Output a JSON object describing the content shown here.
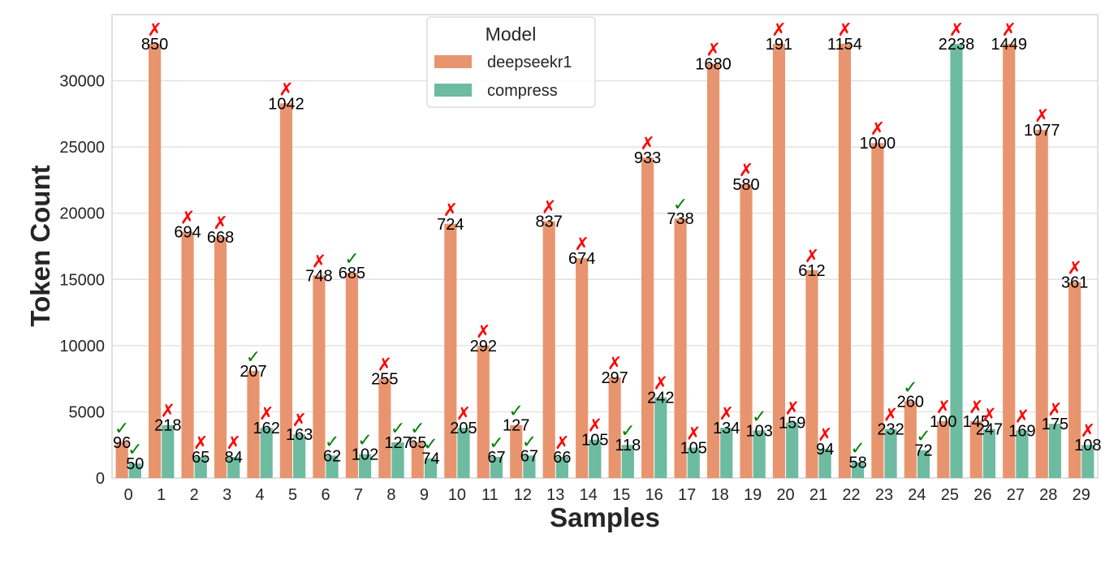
{
  "chart_data": {
    "type": "bar",
    "title": "",
    "xlabel": "Samples",
    "ylabel": "Token Count",
    "ylim": [
      0,
      35000
    ],
    "yticks": [
      0,
      5000,
      10000,
      15000,
      20000,
      25000,
      30000
    ],
    "grid": true,
    "legend": {
      "title": "Model",
      "placement": "top-center"
    },
    "categories": [
      "0",
      "1",
      "2",
      "3",
      "4",
      "5",
      "6",
      "7",
      "8",
      "9",
      "10",
      "11",
      "12",
      "13",
      "14",
      "15",
      "16",
      "17",
      "18",
      "19",
      "20",
      "21",
      "22",
      "23",
      "24",
      "25",
      "26",
      "27",
      "28",
      "29"
    ],
    "series": [
      {
        "name": "deepseekr1",
        "color": "#e8956f",
        "values": [
          2700,
          32800,
          18600,
          18200,
          8100,
          28300,
          15300,
          15500,
          7500,
          2700,
          19200,
          10000,
          4000,
          19400,
          16600,
          7600,
          24200,
          19600,
          31300,
          22200,
          32800,
          15700,
          32800,
          25300,
          5800,
          4300,
          4300,
          32800,
          26300,
          14800
        ],
        "labels": [
          "96",
          "850",
          "694",
          "668",
          "207",
          "1042",
          "748",
          "685",
          "255",
          "65",
          "724",
          "292",
          "127",
          "837",
          "674",
          "297",
          "933",
          "738",
          "1680",
          "580",
          "191",
          "612",
          "1154",
          "1000",
          "260",
          "100",
          "145",
          "1449",
          "1077",
          "361"
        ],
        "correct": [
          true,
          false,
          false,
          false,
          true,
          false,
          false,
          true,
          false,
          true,
          false,
          false,
          true,
          false,
          false,
          false,
          false,
          true,
          false,
          false,
          false,
          false,
          false,
          false,
          true,
          false,
          false,
          false,
          false,
          false
        ]
      },
      {
        "name": "compress",
        "color": "#6dbba0",
        "values": [
          1100,
          4000,
          1600,
          1600,
          3800,
          3300,
          1700,
          1800,
          2700,
          1500,
          3800,
          1600,
          1700,
          1600,
          2900,
          2500,
          6100,
          2300,
          3800,
          3600,
          4200,
          2200,
          1200,
          3700,
          2100,
          32800,
          3700,
          3600,
          4100,
          2500
        ],
        "labels": [
          "50",
          "218",
          "65",
          "84",
          "162",
          "163",
          "62",
          "102",
          "127",
          "74",
          "205",
          "67",
          "67",
          "66",
          "105",
          "118",
          "242",
          "105",
          "134",
          "103",
          "159",
          "94",
          "58",
          "232",
          "72",
          "2238",
          "247",
          "169",
          "175",
          "108"
        ],
        "correct": [
          true,
          false,
          false,
          false,
          false,
          false,
          true,
          true,
          true,
          true,
          false,
          true,
          true,
          false,
          false,
          true,
          false,
          false,
          false,
          true,
          false,
          false,
          true,
          false,
          true,
          false,
          false,
          false,
          false,
          false
        ]
      }
    ],
    "marks": {
      "correct": "✓",
      "wrong": "✗",
      "correct_color": "#008000",
      "wrong_color": "#ff0000"
    }
  }
}
